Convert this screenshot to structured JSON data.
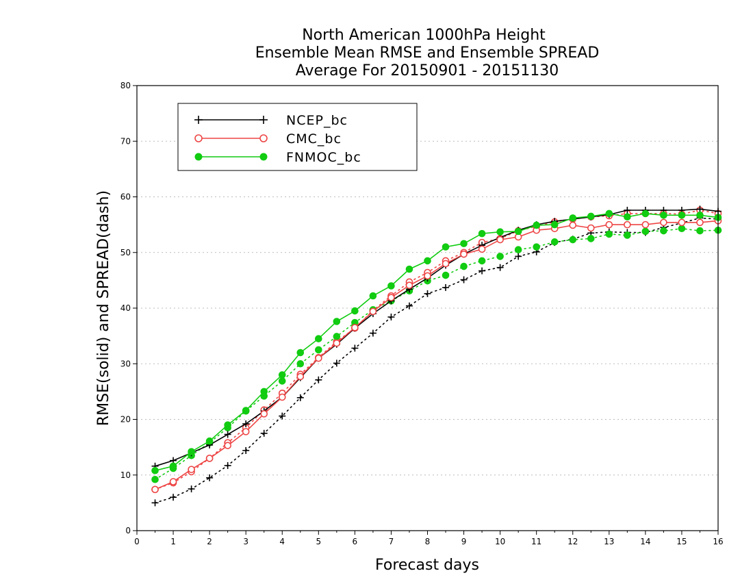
{
  "chart_data": {
    "type": "line",
    "title": [
      "North American 1000hPa Height",
      "Ensemble Mean RMSE and Ensemble SPREAD",
      "Average For 20150901 - 20151130"
    ],
    "xlabel": "Forecast days",
    "ylabel": "RMSE(solid) and SPREAD(dash)",
    "xlim": [
      0,
      16
    ],
    "ylim": [
      0,
      80
    ],
    "xticks": [
      0,
      1,
      2,
      3,
      4,
      5,
      6,
      7,
      8,
      9,
      10,
      11,
      12,
      13,
      14,
      15,
      16
    ],
    "yticks": [
      0,
      10,
      20,
      30,
      40,
      50,
      60,
      70,
      80
    ],
    "grid": true,
    "legend_position": "top-left",
    "x": [
      0.5,
      1,
      1.5,
      2,
      2.5,
      3,
      3.5,
      4,
      4.5,
      5,
      5.5,
      6,
      6.5,
      7,
      7.5,
      8,
      8.5,
      9,
      9.5,
      10,
      10.5,
      11,
      11.5,
      12,
      12.5,
      13,
      13.5,
      14,
      14.5,
      15,
      15.5,
      16
    ],
    "series": [
      {
        "name": "NCEP_bc",
        "color": "#000000",
        "marker": "plus",
        "rmse": [
          11.6,
          12.6,
          14.0,
          15.4,
          17.3,
          19.2,
          21.5,
          24.0,
          27.5,
          31.0,
          33.5,
          36.4,
          39.0,
          41.3,
          43.4,
          45.4,
          47.7,
          49.7,
          51.3,
          52.7,
          54.0,
          55.0,
          55.6,
          56.0,
          56.4,
          56.8,
          57.6,
          57.6,
          57.6,
          57.6,
          57.8,
          57.4
        ],
        "spread": [
          5.0,
          6.0,
          7.5,
          9.5,
          11.7,
          14.4,
          17.5,
          20.6,
          23.9,
          27.1,
          30.1,
          32.8,
          35.5,
          38.4,
          40.4,
          42.6,
          43.7,
          45.1,
          46.7,
          47.3,
          49.3,
          50.1,
          51.8,
          52.4,
          53.5,
          53.7,
          53.6,
          53.6,
          54.5,
          55.3,
          56.2,
          56.0
        ]
      },
      {
        "name": "CMC_bc",
        "color": "#ee4444",
        "marker": "open-circle",
        "rmse": [
          7.4,
          8.8,
          11.0,
          13.0,
          15.3,
          17.8,
          21.0,
          24.0,
          27.7,
          31.0,
          33.7,
          36.5,
          39.4,
          41.9,
          44.1,
          45.8,
          48.0,
          49.7,
          50.6,
          52.3,
          52.8,
          54.0,
          54.3,
          54.9,
          54.4,
          55.0,
          55.0,
          55.0,
          55.4,
          55.4,
          55.4,
          55.7
        ],
        "spread": [
          7.4,
          8.6,
          10.6,
          13.0,
          15.8,
          18.5,
          21.7,
          24.7,
          28.1,
          31.1,
          34.0,
          36.4,
          39.6,
          42.2,
          44.7,
          46.4,
          48.5,
          50.0,
          51.8,
          52.5,
          53.9,
          54.7,
          55.5,
          56.0,
          56.4,
          56.6,
          57.0,
          57.0,
          57.0,
          56.9,
          57.6,
          57.0
        ]
      },
      {
        "name": "FNMOC_bc",
        "color": "#11cc11",
        "marker": "filled-circle",
        "rmse": [
          10.8,
          11.6,
          14.2,
          16.1,
          19.0,
          21.6,
          25.0,
          28.0,
          32.0,
          34.5,
          37.6,
          39.5,
          42.2,
          44.0,
          47.0,
          48.5,
          51.0,
          51.6,
          53.4,
          53.7,
          53.8,
          54.9,
          55.0,
          56.2,
          56.5,
          57.0,
          56.4,
          57.0,
          56.7,
          56.7,
          56.7,
          56.3
        ],
        "spread": [
          9.2,
          11.2,
          13.5,
          15.8,
          18.5,
          21.5,
          24.2,
          26.9,
          30.0,
          32.5,
          34.9,
          37.4,
          39.7,
          41.3,
          43.1,
          44.9,
          45.9,
          47.5,
          48.5,
          49.3,
          50.5,
          51.0,
          51.9,
          52.3,
          52.5,
          53.3,
          53.1,
          53.8,
          53.9,
          54.3,
          53.9,
          54.0
        ]
      }
    ]
  }
}
